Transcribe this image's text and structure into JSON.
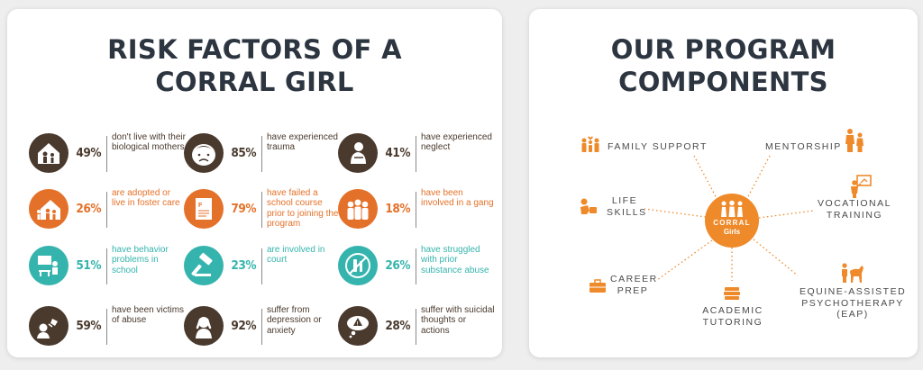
{
  "risk_panel": {
    "title_line1": "RISK FACTORS OF A",
    "title_line2": "CORRAL GIRL",
    "items": [
      {
        "percent": "49%",
        "text": "don't live with their biological mothers",
        "icon": "house-family-icon",
        "color": "brown"
      },
      {
        "percent": "85%",
        "text": "have experienced trauma",
        "icon": "sad-face-icon",
        "color": "brown"
      },
      {
        "percent": "41%",
        "text": "have experienced neglect",
        "icon": "sitting-girl-icon",
        "color": "brown"
      },
      {
        "percent": "26%",
        "text": "are adopted or live in foster care",
        "icon": "house-family-icon",
        "color": "orange"
      },
      {
        "percent": "79%",
        "text": "have failed a school course prior to joining the program",
        "icon": "failed-paper-icon",
        "color": "orange"
      },
      {
        "percent": "18%",
        "text": "have been involved in a gang",
        "icon": "group-icon",
        "color": "orange"
      },
      {
        "percent": "51%",
        "text": "have behavior problems in school",
        "icon": "classroom-icon",
        "color": "teal"
      },
      {
        "percent": "23%",
        "text": "are involved in court",
        "icon": "gavel-icon",
        "color": "teal"
      },
      {
        "percent": "26%",
        "text": "have struggled with prior substance abuse",
        "icon": "no-drugs-icon",
        "color": "teal"
      },
      {
        "percent": "59%",
        "text": "have been victims of abuse",
        "icon": "abuse-icon",
        "color": "brown"
      },
      {
        "percent": "92%",
        "text": "suffer from depression or anxiety",
        "icon": "head-in-hands-icon",
        "color": "brown"
      },
      {
        "percent": "28%",
        "text": "suffer with suicidal thoughts or actions",
        "icon": "warning-thought-icon",
        "color": "brown"
      }
    ]
  },
  "program_panel": {
    "title_line1": "OUR PROGRAM",
    "title_line2": "COMPONENTS",
    "hub": {
      "name": "CORRAL",
      "sub": "Girls"
    },
    "components": {
      "family": {
        "line1": "FAMILY SUPPORT"
      },
      "mentorship": {
        "line1": "MENTORSHIP"
      },
      "life": {
        "line1": "LIFE",
        "line2": "SKILLS"
      },
      "vocational": {
        "line1": "VOCATIONAL",
        "line2": "TRAINING"
      },
      "career": {
        "line1": "CAREER",
        "line2": "PREP"
      },
      "academic": {
        "line1": "ACADEMIC",
        "line2": "TUTORING"
      },
      "equine": {
        "line1": "EQUINE-ASSISTED",
        "line2": "PSYCHOTHERAPY",
        "line3": "(EAP)"
      }
    }
  },
  "colors": {
    "brown": "#4a3a2e",
    "orange": "#e4712a",
    "teal": "#35b4ad",
    "accent": "#ef8a2b",
    "title": "#2c3540"
  }
}
